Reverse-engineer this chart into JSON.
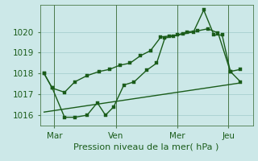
{
  "xlabel": "Pression niveau de la mer( hPa )",
  "bg_color": "#cce8e8",
  "grid_color": "#a8d0d0",
  "line_color": "#1a5c1a",
  "xtick_labels": [
    "Mar",
    "Ven",
    "Mer",
    "Jeu"
  ],
  "xtick_positions": [
    0.5,
    3.5,
    6.5,
    9.0
  ],
  "ylim": [
    1015.5,
    1021.3
  ],
  "yticks": [
    1016,
    1017,
    1018,
    1019,
    1020
  ],
  "series1_x": [
    0.0,
    0.4,
    1.0,
    1.5,
    2.1,
    2.7,
    3.2,
    3.7,
    4.2,
    4.7,
    5.2,
    5.7,
    6.1,
    6.5,
    7.0,
    7.5,
    8.0,
    8.5,
    9.1,
    9.6
  ],
  "series1_y": [
    1018.0,
    1017.3,
    1017.1,
    1017.6,
    1017.9,
    1018.1,
    1018.2,
    1018.4,
    1018.5,
    1018.85,
    1019.1,
    1019.75,
    1019.8,
    1019.85,
    1020.0,
    1020.05,
    1020.15,
    1019.95,
    1018.1,
    1017.6
  ],
  "series2_x": [
    0.0,
    0.4,
    1.0,
    1.5,
    2.1,
    2.6,
    3.0,
    3.4,
    3.9,
    4.4,
    5.0,
    5.5,
    5.9,
    6.3,
    6.8,
    7.3,
    7.8,
    8.3,
    8.7,
    9.1,
    9.6
  ],
  "series2_y": [
    1018.0,
    1017.3,
    1015.9,
    1015.9,
    1016.0,
    1016.6,
    1016.0,
    1016.4,
    1017.45,
    1017.6,
    1018.15,
    1018.5,
    1019.7,
    1019.8,
    1019.9,
    1020.0,
    1021.05,
    1019.85,
    1019.85,
    1018.1,
    1018.2
  ],
  "series3_x": [
    0.0,
    9.6
  ],
  "series3_y": [
    1016.15,
    1017.55
  ],
  "vlines_x": [
    0.5,
    3.5,
    6.5,
    9.0
  ],
  "marker_size": 2.5,
  "linewidth": 1.0,
  "xlim": [
    -0.2,
    10.2
  ]
}
